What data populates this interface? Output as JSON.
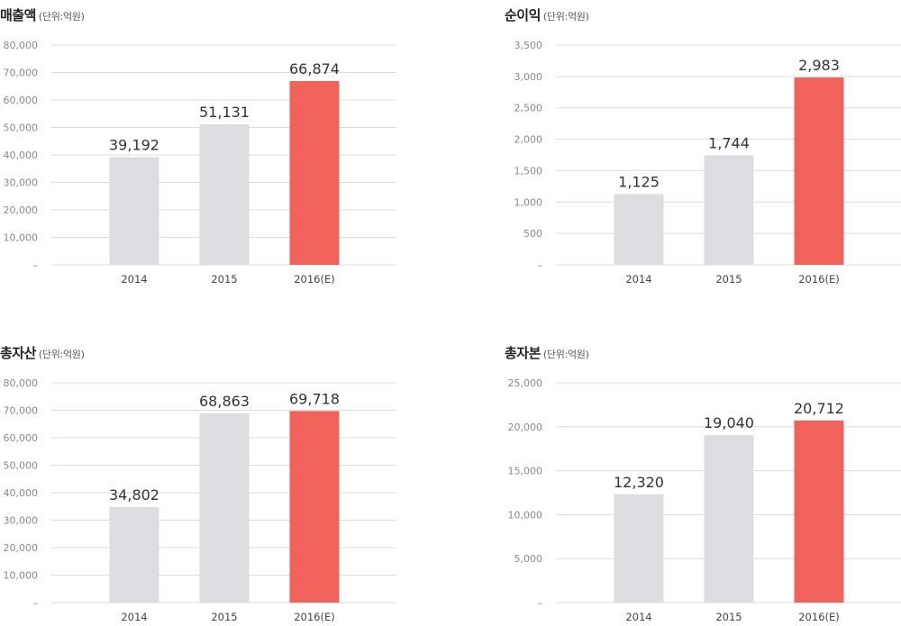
{
  "colors": {
    "bar_default": "#dddde1",
    "bar_highlight": "#f0625a",
    "grid": "#dcdcdc"
  },
  "chart_data": [
    {
      "type": "bar",
      "title": "매출액",
      "unit": "(단위:억원)",
      "categories": [
        "2014",
        "2015",
        "2016(E)"
      ],
      "values": [
        39192,
        51131,
        66874
      ],
      "value_labels": [
        "39,192",
        "51,131",
        "66,874"
      ],
      "ylim": [
        0,
        80000
      ],
      "yticks": [
        0,
        10000,
        20000,
        30000,
        40000,
        50000,
        60000,
        70000,
        80000
      ],
      "ytick_labels": [
        "–",
        "10,000",
        "20,000",
        "30,000",
        "40,000",
        "50,000",
        "60,000",
        "70,000",
        "80,000"
      ],
      "highlight_index": 2,
      "grid": true
    },
    {
      "type": "bar",
      "title": "순이익",
      "unit": "(단위:억원)",
      "categories": [
        "2014",
        "2015",
        "2016(E)"
      ],
      "values": [
        1125,
        1744,
        2983
      ],
      "value_labels": [
        "1,125",
        "1,744",
        "2,983"
      ],
      "ylim": [
        0,
        3500
      ],
      "yticks": [
        0,
        500,
        1000,
        1500,
        2000,
        2500,
        3000,
        3500
      ],
      "ytick_labels": [
        "–",
        "500",
        "1,000",
        "1,500",
        "2,000",
        "2,500",
        "3,000",
        "3,500"
      ],
      "highlight_index": 2,
      "grid": true
    },
    {
      "type": "bar",
      "title": "총자산",
      "unit": "(단위:억원)",
      "categories": [
        "2014",
        "2015",
        "2016(E)"
      ],
      "values": [
        34802,
        68863,
        69718
      ],
      "value_labels": [
        "34,802",
        "68,863",
        "69,718"
      ],
      "ylim": [
        0,
        80000
      ],
      "yticks": [
        0,
        10000,
        20000,
        30000,
        40000,
        50000,
        60000,
        70000,
        80000
      ],
      "ytick_labels": [
        "–",
        "10,000",
        "20,000",
        "30,000",
        "40,000",
        "50,000",
        "60,000",
        "70,000",
        "80,000"
      ],
      "highlight_index": 2,
      "grid": true
    },
    {
      "type": "bar",
      "title": "총자본",
      "unit": "(단위:억원)",
      "categories": [
        "2014",
        "2015",
        "2016(E)"
      ],
      "values": [
        12320,
        19040,
        20712
      ],
      "value_labels": [
        "12,320",
        "19,040",
        "20,712"
      ],
      "ylim": [
        0,
        25000
      ],
      "yticks": [
        0,
        5000,
        10000,
        15000,
        20000,
        25000
      ],
      "ytick_labels": [
        "–",
        "5,000",
        "10,000",
        "15,000",
        "20,000",
        "25,000"
      ],
      "highlight_index": 2,
      "grid": true
    }
  ]
}
